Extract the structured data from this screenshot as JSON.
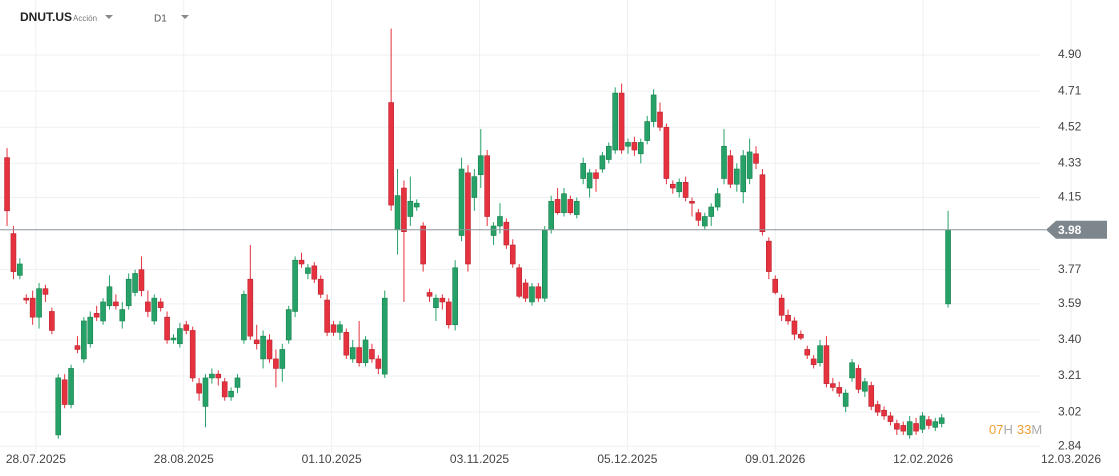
{
  "chart_data": {
    "type": "candlestick",
    "title": "DNUT.US",
    "subtitle": "Acción",
    "timeframe": "D1",
    "countdown": {
      "hours": "07",
      "hours_unit": "H",
      "minutes": "33",
      "minutes_unit": "M"
    },
    "last_price": 3.98,
    "up_color": "#26a269",
    "down_color": "#e5323e",
    "grid": true,
    "ylim": [
      2.81,
      5.19
    ],
    "yticks": [
      2.84,
      3.02,
      3.21,
      {
        "value": 3.4,
        "label": "3.40"
      },
      3.59,
      3.77,
      4.15,
      4.33,
      4.52,
      4.71,
      {
        "value": 4.9,
        "label": "4.90"
      }
    ],
    "xlim": [
      -1.1,
      173.7
    ],
    "xticks": [
      {
        "value": 4.5,
        "label": "28.07.2025"
      },
      {
        "value": 27.6,
        "label": "28.08.2025"
      },
      {
        "value": 50.7,
        "label": "01.10.2025"
      },
      {
        "value": 73.8,
        "label": "03.11.2025"
      },
      {
        "value": 96.9,
        "label": "05.12.2025"
      },
      {
        "value": 120.0,
        "label": "09.01.2026"
      },
      {
        "value": 143.1,
        "label": "12.02.2026"
      },
      {
        "value": 166.2,
        "label": "12.03.2026"
      }
    ],
    "open": [
      4.36,
      3.96,
      3.74,
      3.62,
      3.62,
      3.52,
      3.67,
      3.55,
      2.9,
      3.19,
      3.06,
      3.37,
      3.3,
      3.38,
      3.54,
      3.5,
      3.58,
      3.6,
      3.5,
      3.58,
      3.65,
      3.77,
      3.6,
      3.5,
      3.6,
      3.52,
      3.4,
      3.38,
      3.48,
      3.45,
      3.17,
      3.05,
      3.2,
      3.22,
      3.18,
      3.1,
      3.15,
      3.4,
      3.72,
      3.4,
      3.3,
      3.4,
      3.3,
      3.25,
      3.4,
      3.55,
      3.82,
      3.75,
      3.79,
      3.72,
      3.61,
      3.48,
      3.44,
      3.44,
      3.3,
      3.36,
      3.28,
      3.35,
      3.3,
      3.22,
      4.65,
      3.98,
      4.2,
      4.05,
      4.1,
      4.0,
      3.65,
      3.57,
      3.62,
      3.6,
      3.48,
      3.95,
      4.28,
      4.15,
      4.27,
      4.37,
      3.95,
      4.0,
      4.02,
      3.9,
      3.78,
      3.7,
      3.6,
      3.68,
      3.62,
      3.98,
      4.14,
      4.07,
      4.14,
      4.06,
      4.25,
      4.2,
      4.28,
      4.3,
      4.35,
      4.4,
      4.7,
      4.42,
      4.44,
      4.38,
      4.45,
      4.55,
      4.6,
      4.52,
      4.22,
      4.18,
      4.23,
      4.13,
      4.07,
      4.0,
      4.05,
      4.1,
      4.25,
      4.37,
      4.22,
      4.18,
      4.25,
      4.38,
      4.27,
      3.92,
      3.72,
      3.62,
      3.53,
      3.5,
      3.43,
      3.35,
      3.3,
      3.28,
      3.37,
      3.17,
      3.15,
      3.05,
      3.2,
      3.25,
      3.13,
      3.16,
      3.06,
      3.03,
      3.0,
      2.96,
      2.95,
      2.9,
      2.96,
      2.93,
      2.98,
      2.94,
      2.96,
      3.59
    ],
    "high": [
      4.41,
      4.0,
      3.83,
      3.64,
      3.66,
      3.7,
      3.69,
      3.57,
      3.22,
      3.22,
      3.27,
      3.42,
      3.52,
      3.55,
      3.58,
      3.62,
      3.74,
      3.64,
      3.6,
      3.75,
      3.77,
      3.84,
      3.66,
      3.64,
      3.62,
      3.55,
      3.43,
      3.49,
      3.5,
      3.47,
      3.2,
      3.22,
      3.25,
      3.24,
      3.2,
      3.15,
      3.22,
      3.66,
      3.9,
      3.48,
      3.45,
      3.43,
      3.35,
      3.38,
      3.58,
      3.84,
      3.86,
      3.8,
      3.81,
      3.74,
      3.64,
      3.5,
      3.5,
      3.46,
      3.4,
      3.5,
      3.42,
      3.38,
      3.32,
      3.66,
      5.04,
      4.3,
      4.24,
      4.26,
      4.14,
      4.02,
      3.67,
      3.64,
      3.64,
      3.62,
      3.82,
      4.36,
      4.32,
      4.3,
      4.51,
      4.4,
      4.02,
      4.12,
      4.04,
      3.93,
      3.8,
      3.72,
      3.7,
      3.7,
      4.0,
      4.16,
      4.2,
      4.2,
      4.16,
      4.15,
      4.36,
      4.3,
      4.3,
      4.39,
      4.44,
      4.73,
      4.75,
      4.46,
      4.47,
      4.46,
      4.58,
      4.72,
      4.65,
      4.54,
      4.24,
      4.25,
      4.26,
      4.15,
      4.09,
      4.07,
      4.12,
      4.2,
      4.51,
      4.4,
      4.33,
      4.4,
      4.46,
      4.42,
      4.3,
      3.94,
      3.74,
      3.64,
      3.56,
      3.52,
      3.45,
      3.37,
      3.32,
      3.4,
      3.42,
      3.2,
      3.18,
      3.14,
      3.3,
      3.27,
      3.2,
      3.18,
      3.08,
      3.05,
      3.02,
      2.98,
      2.97,
      3.0,
      2.99,
      3.02,
      3.0,
      2.99,
      3.01,
      4.08
    ],
    "low": [
      4.0,
      3.72,
      3.72,
      3.59,
      3.48,
      3.46,
      3.6,
      3.43,
      2.88,
      3.04,
      3.04,
      3.33,
      3.28,
      3.36,
      3.5,
      3.48,
      3.56,
      3.56,
      3.46,
      3.56,
      3.63,
      3.63,
      3.52,
      3.48,
      3.55,
      3.38,
      3.38,
      3.36,
      3.43,
      3.18,
      3.08,
      2.94,
      3.17,
      3.16,
      3.08,
      3.08,
      3.12,
      3.38,
      3.4,
      3.35,
      3.25,
      3.28,
      3.15,
      3.18,
      3.38,
      3.52,
      3.78,
      3.72,
      3.7,
      3.62,
      3.42,
      3.42,
      3.4,
      3.3,
      3.28,
      3.26,
      3.26,
      3.28,
      3.22,
      3.2,
      4.08,
      3.85,
      3.6,
      4.0,
      4.08,
      3.76,
      3.6,
      3.5,
      3.56,
      3.46,
      3.45,
      3.92,
      3.76,
      4.08,
      4.2,
      4.0,
      3.9,
      3.96,
      3.88,
      3.78,
      3.62,
      3.6,
      3.58,
      3.6,
      3.6,
      3.96,
      4.06,
      4.05,
      4.06,
      4.04,
      4.22,
      4.15,
      4.18,
      4.28,
      4.33,
      4.38,
      4.38,
      4.38,
      4.37,
      4.33,
      4.43,
      4.52,
      4.5,
      4.22,
      4.17,
      4.15,
      4.13,
      4.05,
      4.0,
      3.98,
      4.0,
      4.08,
      4.22,
      4.2,
      4.18,
      4.12,
      4.22,
      4.3,
      3.95,
      3.72,
      3.64,
      3.5,
      3.48,
      3.4,
      3.4,
      3.3,
      3.25,
      3.26,
      3.15,
      3.13,
      3.1,
      3.02,
      3.18,
      3.12,
      3.1,
      3.03,
      3.0,
      2.98,
      2.95,
      2.9,
      2.9,
      2.88,
      2.9,
      2.91,
      2.93,
      2.92,
      2.94,
      3.57
    ],
    "close": [
      4.08,
      3.76,
      3.8,
      3.61,
      3.52,
      3.67,
      3.64,
      3.45,
      3.2,
      3.06,
      3.25,
      3.35,
      3.5,
      3.52,
      3.52,
      3.6,
      3.68,
      3.58,
      3.56,
      3.72,
      3.75,
      3.66,
      3.55,
      3.62,
      3.57,
      3.4,
      3.41,
      3.46,
      3.45,
      3.2,
      3.12,
      3.2,
      3.22,
      3.2,
      3.1,
      3.13,
      3.2,
      3.64,
      3.42,
      3.38,
      3.42,
      3.3,
      3.25,
      3.35,
      3.56,
      3.82,
      3.8,
      3.78,
      3.72,
      3.64,
      3.44,
      3.44,
      3.48,
      3.32,
      3.36,
      3.28,
      3.4,
      3.3,
      3.25,
      3.62,
      4.11,
      4.16,
      3.97,
      4.13,
      4.12,
      3.8,
      3.63,
      3.62,
      3.6,
      3.48,
      3.78,
      4.3,
      3.8,
      4.26,
      4.37,
      4.05,
      4.0,
      4.05,
      3.9,
      3.8,
      3.63,
      3.62,
      3.68,
      3.62,
      3.98,
      4.13,
      4.07,
      4.17,
      4.07,
      4.13,
      4.33,
      4.28,
      4.25,
      4.37,
      4.42,
      4.7,
      4.4,
      4.44,
      4.4,
      4.44,
      4.55,
      4.69,
      4.52,
      4.25,
      4.2,
      4.23,
      4.15,
      4.12,
      4.03,
      4.05,
      4.1,
      4.17,
      4.42,
      4.22,
      4.3,
      4.37,
      4.39,
      4.33,
      3.97,
      3.76,
      3.65,
      3.53,
      3.5,
      3.43,
      3.41,
      3.32,
      3.27,
      3.37,
      3.17,
      3.15,
      3.12,
      3.12,
      3.28,
      3.14,
      3.18,
      3.05,
      3.02,
      3.0,
      2.97,
      2.93,
      2.92,
      2.97,
      2.92,
      3.0,
      2.95,
      2.97,
      2.99,
      3.98
    ]
  }
}
